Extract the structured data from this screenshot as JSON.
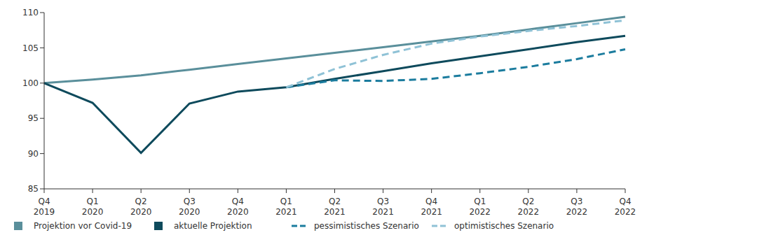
{
  "chart_data": {
    "type": "line",
    "categories": [
      "Q4 2019",
      "Q1 2020",
      "Q2 2020",
      "Q3 2020",
      "Q4 2020",
      "Q1 2021",
      "Q2 2021",
      "Q3 2021",
      "Q4 2021",
      "Q1 2022",
      "Q2 2022",
      "Q3 2022",
      "Q4 2022"
    ],
    "series": [
      {
        "name": "Projektion vor Covid-19",
        "color": "#5a8f9b",
        "line_style": "solid",
        "values": [
          100,
          100.5,
          101.1,
          101.9,
          102.7,
          103.5,
          104.3,
          105.1,
          105.9,
          106.7,
          107.6,
          108.5,
          109.4
        ]
      },
      {
        "name": "aktuelle Projektion",
        "color": "#0e4a5c",
        "line_style": "solid",
        "values": [
          100,
          97.2,
          90.1,
          97.1,
          98.8,
          99.4,
          100.6,
          101.7,
          102.8,
          103.8,
          104.8,
          105.8,
          106.7
        ]
      },
      {
        "name": "pessimistisches Szenario",
        "color": "#1b7c9e",
        "line_style": "dashed",
        "values": [
          null,
          null,
          null,
          null,
          null,
          99.4,
          100.4,
          100.3,
          100.6,
          101.4,
          102.3,
          103.4,
          104.8
        ]
      },
      {
        "name": "optimistisches Szenario",
        "color": "#8fc2d6",
        "line_style": "dashed",
        "values": [
          null,
          null,
          null,
          null,
          null,
          99.4,
          102.0,
          104.0,
          105.6,
          106.6,
          107.4,
          108.1,
          108.9
        ]
      }
    ],
    "ylim": [
      85,
      110
    ],
    "yticks": [
      85,
      90,
      95,
      100,
      105,
      110
    ],
    "grid": false,
    "legend": "bottom"
  }
}
